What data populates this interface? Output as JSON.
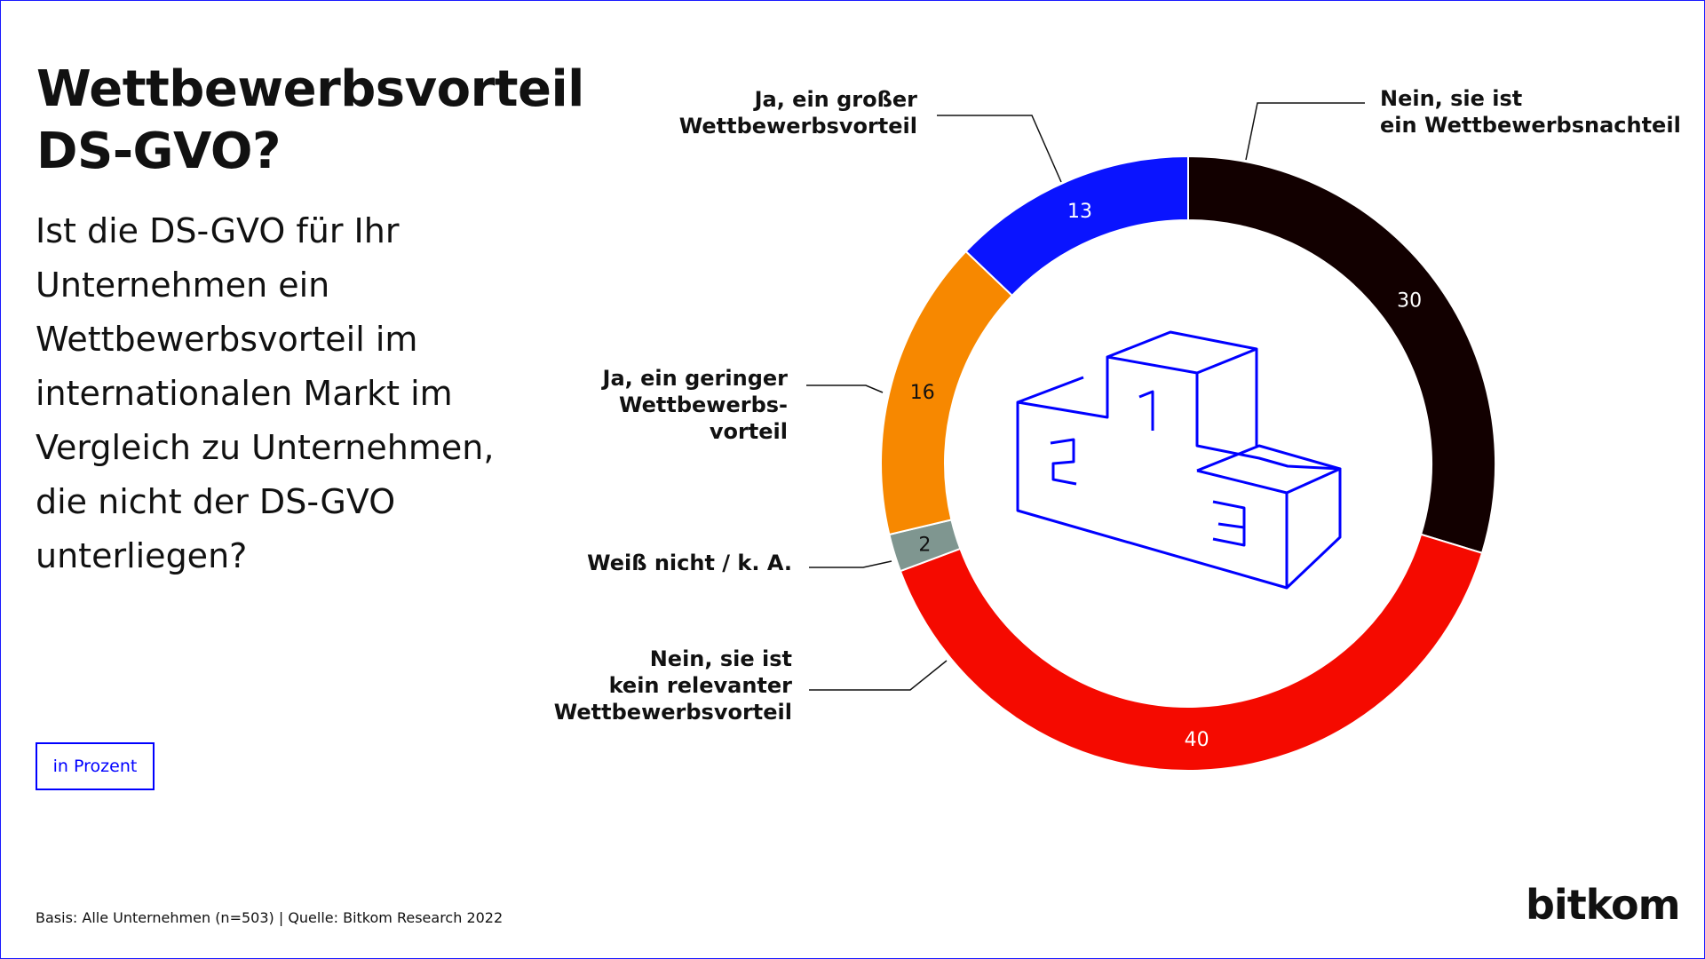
{
  "title_line1": "Wettbewerbsvorteil",
  "title_line2": "DS-GVO?",
  "question": "Ist die DS-GVO für Ihr Unternehmen ein Wettbewerbsvorteil im internationalen Markt im Vergleich zu Unternehmen, die nicht der DS-GVO unterliegen?",
  "unit": "in Prozent",
  "source": "Basis: Alle Unternehmen (n=503) | Quelle: Bitkom Research 2022",
  "logo": "bitkom",
  "icon": "podium-icon",
  "colors": {
    "accent": "#0000ff"
  },
  "chart_data": {
    "type": "pie",
    "variant": "donut",
    "start": "top, clockwise",
    "slices": [
      {
        "label": [
          "Nein, sie ist",
          "ein Wettbewerbsnachteil"
        ],
        "value": 30,
        "color": "#120000",
        "text_color": "#ffffff"
      },
      {
        "label": [
          "Nein, sie ist",
          "kein relevanter",
          "Wettbewerbsvorteil"
        ],
        "value": 40,
        "color": "#f50a00",
        "text_color": "#ffffff"
      },
      {
        "label": [
          "Weiß nicht / k. A."
        ],
        "value": 2,
        "color": "#7f9690",
        "text_color": "#111111"
      },
      {
        "label": [
          "Ja, ein geringer",
          "Wettbewerbs-",
          "vorteil"
        ],
        "value": 16,
        "color": "#f78800",
        "text_color": "#111111"
      },
      {
        "label": [
          "Ja, ein großer",
          "Wettbewerbsvorteil"
        ],
        "value": 13,
        "color": "#0a14ff",
        "text_color": "#ffffff"
      }
    ]
  }
}
